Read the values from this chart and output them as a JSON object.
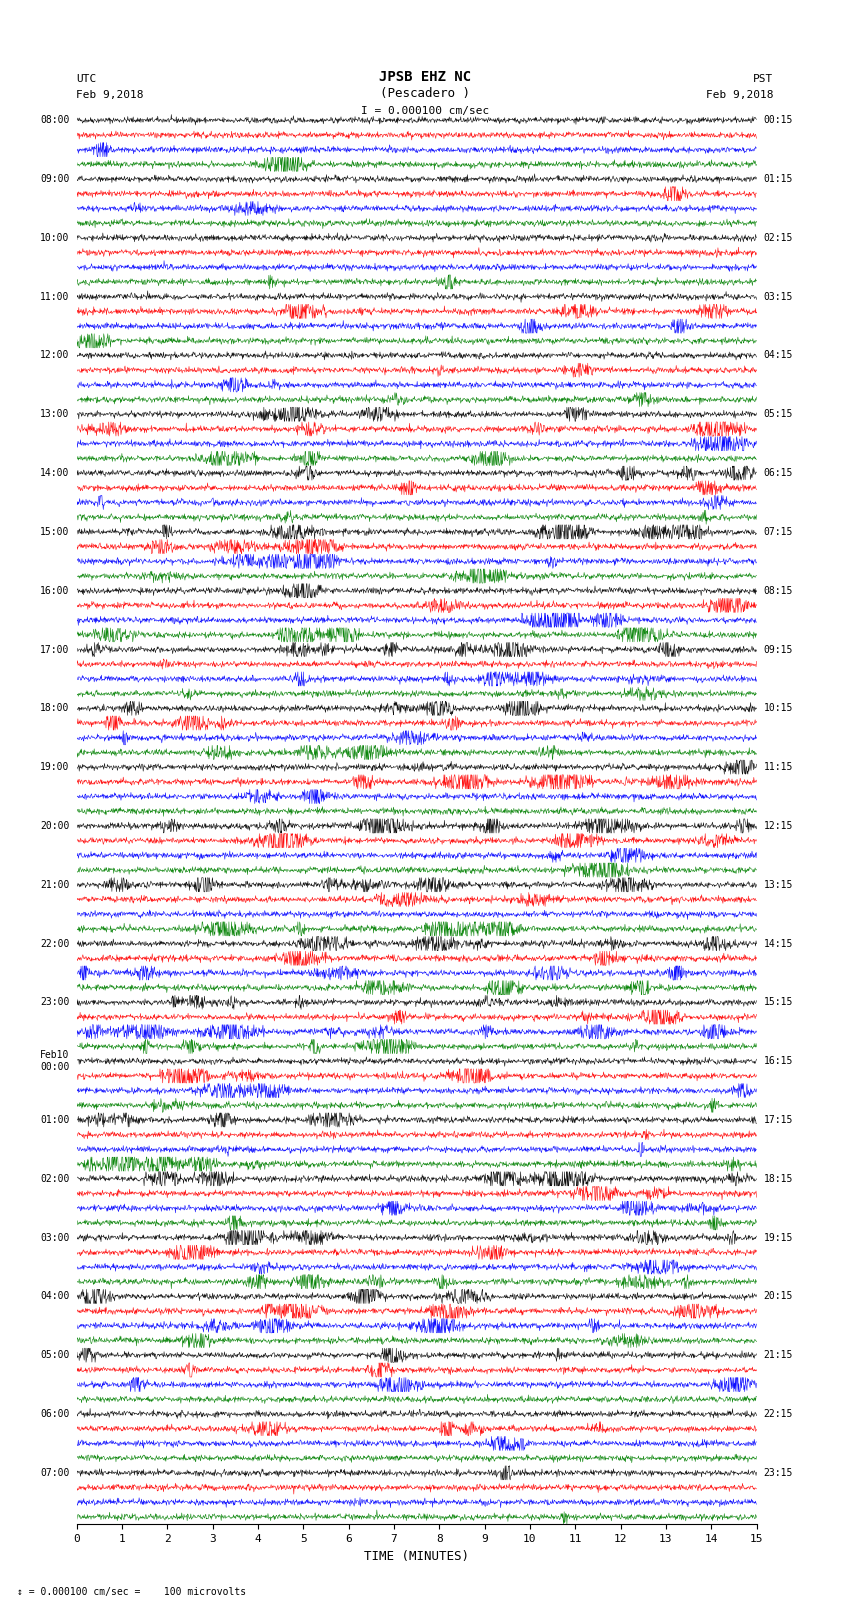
{
  "title_line1": "JPSB EHZ NC",
  "title_line2": "(Pescadero )",
  "title_line3": "I = 0.000100 cm/sec",
  "left_label_line1": "UTC",
  "left_label_line2": "Feb 9,2018",
  "right_label_line1": "PST",
  "right_label_line2": "Feb 9,2018",
  "bottom_label": "TIME (MINUTES)",
  "footnote": "= 0.000100 cm/sec =    100 microvolts",
  "utc_times": [
    "08:00",
    "09:00",
    "10:00",
    "11:00",
    "12:00",
    "13:00",
    "14:00",
    "15:00",
    "16:00",
    "17:00",
    "18:00",
    "19:00",
    "20:00",
    "21:00",
    "22:00",
    "23:00",
    "Feb10\n00:00",
    "01:00",
    "02:00",
    "03:00",
    "04:00",
    "05:00",
    "06:00",
    "07:00"
  ],
  "pst_times": [
    "00:15",
    "01:15",
    "02:15",
    "03:15",
    "04:15",
    "05:15",
    "06:15",
    "07:15",
    "08:15",
    "09:15",
    "10:15",
    "11:15",
    "12:15",
    "13:15",
    "14:15",
    "15:15",
    "16:15",
    "17:15",
    "18:15",
    "19:15",
    "20:15",
    "21:15",
    "22:15",
    "23:15"
  ],
  "colors": [
    "black",
    "red",
    "blue",
    "green"
  ],
  "n_rows": 24,
  "n_traces_per_row": 4,
  "x_min": 0,
  "x_max": 15,
  "x_ticks": [
    0,
    1,
    2,
    3,
    4,
    5,
    6,
    7,
    8,
    9,
    10,
    11,
    12,
    13,
    14,
    15
  ],
  "noise_amplitude": 0.1,
  "signal_amplitude": 0.55,
  "bg_color": "white",
  "seed": 42
}
